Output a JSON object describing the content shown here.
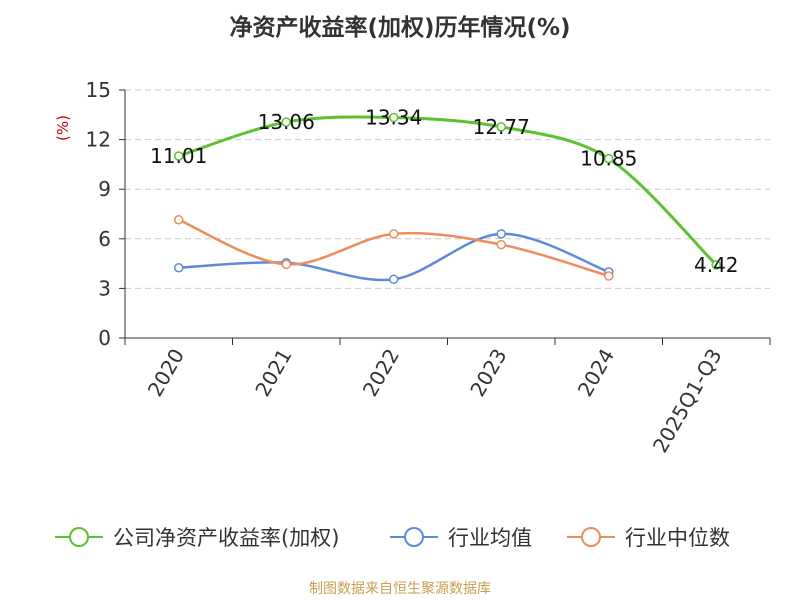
{
  "chart_data": {
    "type": "line",
    "title": "净资产收益率(加权)历年情况(%)",
    "ylabel": "(%)",
    "xlabel": "",
    "categories": [
      "2020",
      "2021",
      "2022",
      "2023",
      "2024",
      "2025Q1-Q3"
    ],
    "ylim": [
      0,
      15
    ],
    "yticks": [
      0,
      3,
      6,
      9,
      12,
      15
    ],
    "grid": true,
    "legend_position": "bottom",
    "series": [
      {
        "name": "公司净资产收益率(加权)",
        "color": "#5cc22e",
        "values": [
          11.01,
          13.06,
          13.34,
          12.77,
          10.85,
          4.42
        ],
        "show_labels": true
      },
      {
        "name": "行业均值",
        "color": "#5b8bd9",
        "values": [
          4.25,
          4.55,
          3.55,
          6.3,
          4.0,
          null
        ],
        "show_labels": false
      },
      {
        "name": "行业中位数",
        "color": "#f08c5a",
        "values": [
          7.15,
          4.45,
          6.3,
          5.65,
          3.75,
          null
        ],
        "show_labels": false
      }
    ]
  },
  "footer": "制图数据来自恒生聚源数据库"
}
